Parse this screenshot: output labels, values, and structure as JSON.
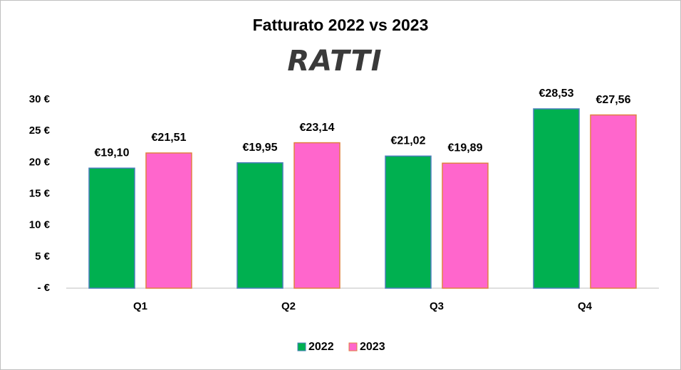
{
  "chart_data": {
    "type": "bar",
    "title": "Fatturato  2022 vs 2023",
    "logo": "RATTI",
    "categories": [
      "Q1",
      "Q2",
      "Q3",
      "Q4"
    ],
    "series": [
      {
        "name": "2022",
        "color": "#00b050",
        "border": "#4a7ebb",
        "values": [
          19.1,
          19.95,
          21.02,
          28.53
        ],
        "value_labels": [
          "€19,10",
          "€19,95",
          "€21,02",
          "€28,53"
        ]
      },
      {
        "name": "2023",
        "color": "#ff66cc",
        "border": "#e08040",
        "values": [
          21.51,
          23.14,
          19.89,
          27.56
        ],
        "value_labels": [
          "€21,51",
          "€23,14",
          "€19,89",
          "€27,56"
        ]
      }
    ],
    "ylim": [
      0,
      30
    ],
    "yticks": [
      {
        "value": 0,
        "label": "- €"
      },
      {
        "value": 5,
        "label": "5 €"
      },
      {
        "value": 10,
        "label": "10 €"
      },
      {
        "value": 15,
        "label": "15 €"
      },
      {
        "value": 20,
        "label": "20 €"
      },
      {
        "value": 25,
        "label": "25 €"
      },
      {
        "value": 30,
        "label": "30 €"
      }
    ],
    "grid": false,
    "legend": "bottom"
  }
}
